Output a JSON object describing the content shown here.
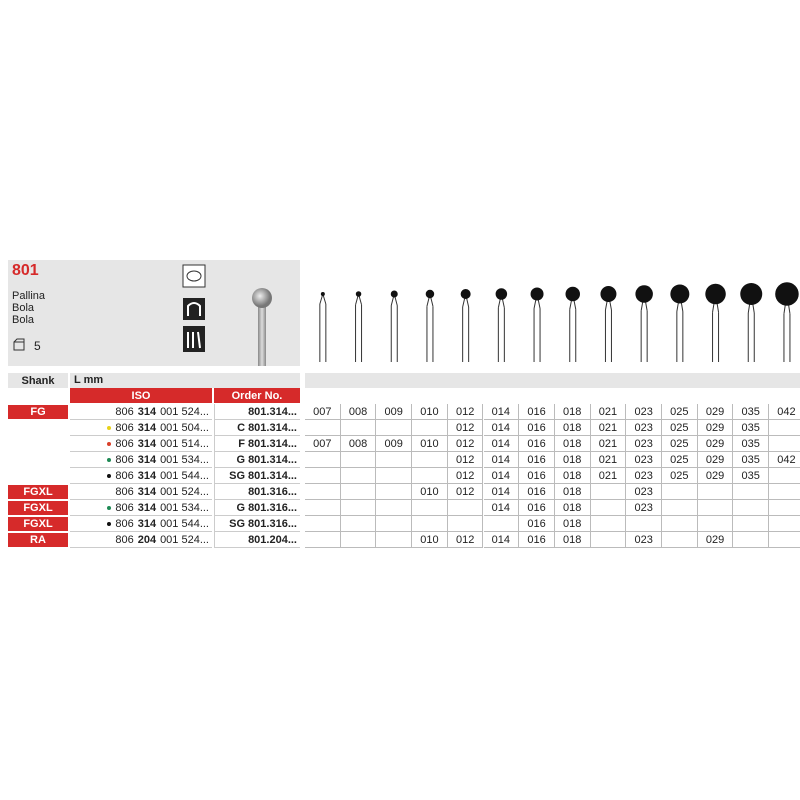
{
  "header": {
    "code": "801",
    "names": [
      "Pallina",
      "Bola",
      "Bola"
    ],
    "pack": "5"
  },
  "table": {
    "headers": {
      "shank": "Shank",
      "length": "L mm",
      "iso": "ISO",
      "order": "Order No."
    },
    "rows": [
      {
        "shank": "FG",
        "iso": [
          "806",
          "314",
          "001 524..."
        ],
        "order": "801.314...",
        "sizes": [
          "007",
          "008",
          "009",
          "010",
          "012",
          "014",
          "016",
          "018",
          "021",
          "023",
          "025",
          "029",
          "035",
          "042"
        ]
      },
      {
        "dot": "#e8d21a",
        "iso": [
          "806",
          "314",
          "001 504..."
        ],
        "order": "C 801.314...",
        "sizes": [
          null,
          null,
          null,
          null,
          "012",
          "014",
          "016",
          "018",
          "021",
          "023",
          "025",
          "029",
          "035",
          null
        ]
      },
      {
        "dot": "#d9402a",
        "iso": [
          "806",
          "314",
          "001 514..."
        ],
        "order": "F 801.314...",
        "sizes": [
          "007",
          "008",
          "009",
          "010",
          "012",
          "014",
          "016",
          "018",
          "021",
          "023",
          "025",
          "029",
          "035",
          null
        ]
      },
      {
        "dot": "#1f8a55",
        "iso": [
          "806",
          "314",
          "001 534..."
        ],
        "order": "G 801.314...",
        "sizes": [
          null,
          null,
          null,
          null,
          "012",
          "014",
          "016",
          "018",
          "021",
          "023",
          "025",
          "029",
          "035",
          "042"
        ]
      },
      {
        "dot": "#111111",
        "iso": [
          "806",
          "314",
          "001 544..."
        ],
        "order": "SG 801.314...",
        "sizes": [
          null,
          null,
          null,
          null,
          "012",
          "014",
          "016",
          "018",
          "021",
          "023",
          "025",
          "029",
          "035",
          null
        ]
      },
      {
        "shank": "FGXL",
        "iso": [
          "806",
          "314",
          "001 524..."
        ],
        "order": "801.316...",
        "sizes": [
          null,
          null,
          null,
          "010",
          "012",
          "014",
          "016",
          "018",
          null,
          "023",
          null,
          null,
          null,
          null
        ]
      },
      {
        "shank": "FGXL",
        "dot": "#1f8a55",
        "iso": [
          "806",
          "314",
          "001 534..."
        ],
        "order": "G 801.316...",
        "sizes": [
          null,
          null,
          null,
          null,
          null,
          "014",
          "016",
          "018",
          null,
          "023",
          null,
          null,
          null,
          null
        ]
      },
      {
        "shank": "FGXL",
        "dot": "#111111",
        "iso": [
          "806",
          "314",
          "001 544..."
        ],
        "order": "SG 801.316...",
        "sizes": [
          null,
          null,
          null,
          null,
          null,
          null,
          "016",
          "018",
          null,
          null,
          null,
          null,
          null,
          null
        ]
      },
      {
        "shank": "RA",
        "iso": [
          "806",
          "204",
          "001 524..."
        ],
        "order": "801.204...",
        "sizes": [
          null,
          null,
          null,
          "010",
          "012",
          "014",
          "016",
          "018",
          null,
          "023",
          null,
          "029",
          null,
          null
        ]
      }
    ]
  }
}
